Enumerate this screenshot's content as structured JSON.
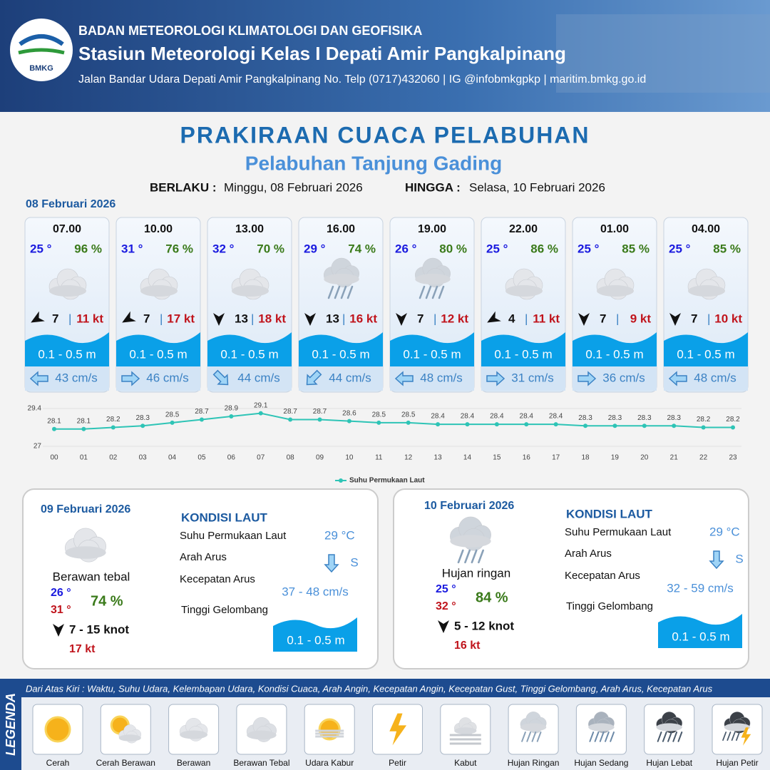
{
  "header": {
    "logo": "BMKG",
    "org": "BADAN METEOROLOGI KLIMATOLOGI DAN GEOFISIKA",
    "station": "Stasiun Meteorologi Kelas I Depati Amir Pangkalpinang",
    "address": "Jalan Bandar Udara Depati Amir Pangkalpinang No. Telp (0717)432060 | IG @infobmkgpkp | maritim.bmkg.go.id"
  },
  "title": "PRAKIRAAN CUACA PELABUHAN",
  "subtitle": "Pelabuhan Tanjung Gading",
  "validity": {
    "from_label": "BERLAKU :",
    "from": "Minggu, 08 Februari 2026",
    "to_label": "HINGGA :",
    "to": "Selasa, 10 Februari 2026"
  },
  "day1": {
    "date": "08 Februari 2026",
    "cards": [
      {
        "time": "07.00",
        "temp": "25 °",
        "humidity": "96 %",
        "wind": "7",
        "gust": "11 kt",
        "wave": "0.1 - 0.5 m",
        "current": "43 cm/s"
      },
      {
        "time": "10.00",
        "temp": "31 °",
        "humidity": "76 %",
        "wind": "7",
        "gust": "17 kt",
        "wave": "0.1 - 0.5 m",
        "current": "46 cm/s"
      },
      {
        "time": "13.00",
        "temp": "32 °",
        "humidity": "70 %",
        "wind": "13",
        "gust": "18 kt",
        "wave": "0.1 - 0.5 m",
        "current": "44 cm/s"
      },
      {
        "time": "16.00",
        "temp": "29 °",
        "humidity": "74 %",
        "wind": "13",
        "gust": "16 kt",
        "wave": "0.1 - 0.5 m",
        "current": "44 cm/s"
      },
      {
        "time": "19.00",
        "temp": "26 °",
        "humidity": "80 %",
        "wind": "7",
        "gust": "12 kt",
        "wave": "0.1 - 0.5 m",
        "current": "48 cm/s"
      },
      {
        "time": "22.00",
        "temp": "25 °",
        "humidity": "86 %",
        "wind": "4",
        "gust": "11 kt",
        "wave": "0.1 - 0.5 m",
        "current": "31 cm/s"
      },
      {
        "time": "01.00",
        "temp": "25 °",
        "humidity": "85 %",
        "wind": "7",
        "gust": "9 kt",
        "wave": "0.1 - 0.5 m",
        "current": "36 cm/s"
      },
      {
        "time": "04.00",
        "temp": "25 °",
        "humidity": "85 %",
        "wind": "7",
        "gust": "10 kt",
        "wave": "0.1 - 0.5 m",
        "current": "48 cm/s"
      }
    ]
  },
  "chart_data": {
    "type": "line",
    "categories": [
      "00",
      "01",
      "02",
      "03",
      "04",
      "05",
      "06",
      "07",
      "08",
      "09",
      "10",
      "11",
      "12",
      "13",
      "14",
      "15",
      "16",
      "17",
      "18",
      "19",
      "20",
      "21",
      "22",
      "23"
    ],
    "series": [
      {
        "name": "Suhu Permukaan Laut",
        "color": "#2ec4b6",
        "values": [
          28.1,
          28.1,
          28.2,
          28.3,
          28.5,
          28.7,
          28.9,
          29.1,
          28.7,
          28.7,
          28.6,
          28.5,
          28.5,
          28.4,
          28.4,
          28.4,
          28.4,
          28.4,
          28.3,
          28.3,
          28.3,
          28.3,
          28.2,
          28.2
        ]
      }
    ],
    "ylim": [
      27,
      29.4
    ],
    "yticks": [
      27,
      29.4
    ],
    "legend": "bottom"
  },
  "days": [
    {
      "date": "09 Februari 2026",
      "condition": "Berawan tebal",
      "temp_min": "26 °",
      "temp_max": "31 °",
      "humidity": "74 %",
      "wind": "7  - 15 knot",
      "gust": "17 kt",
      "sea_title": "KONDISI LAUT",
      "sst_label": "Suhu Permukaan Laut",
      "current_dir_label": "Arah Arus",
      "current_speed_label": "Kecepatan Arus",
      "wave_label": "Tinggi Gelombang",
      "sst": "29 °C",
      "current_dir": "S",
      "current_speed": "37  - 48 cm/s",
      "wave": "0.1 - 0.5 m"
    },
    {
      "date": "10 Februari 2026",
      "condition": "Hujan ringan",
      "temp_min": "25 °",
      "temp_max": "32 °",
      "humidity": "84 %",
      "wind": "5  - 12 knot",
      "gust": "16 kt",
      "sea_title": "KONDISI LAUT",
      "sst_label": "Suhu Permukaan Laut",
      "current_dir_label": "Arah Arus",
      "current_speed_label": "Kecepatan Arus",
      "wave_label": "Tinggi Gelombang",
      "sst": "29 °C",
      "current_dir": "S",
      "current_speed": "32  - 59 cm/s",
      "wave": "0.1 - 0.5 m"
    }
  ],
  "legend": {
    "title": "LEGENDA",
    "description": "Dari Atas Kiri : Waktu, Suhu Udara, Kelembapan Udara, Kondisi Cuaca, Arah Angin, Kecepatan Angin, Kecepatan Gust, Tinggi Gelombang, Arah Arus, Kecepatan Arus",
    "items": [
      "Cerah",
      "Cerah Berawan",
      "Berawan",
      "Berawan Tebal",
      "Udara Kabur",
      "Petir",
      "Kabut",
      "Hujan Ringan",
      "Hujan Sedang",
      "Hujan Lebat",
      "Hujan Petir"
    ]
  }
}
